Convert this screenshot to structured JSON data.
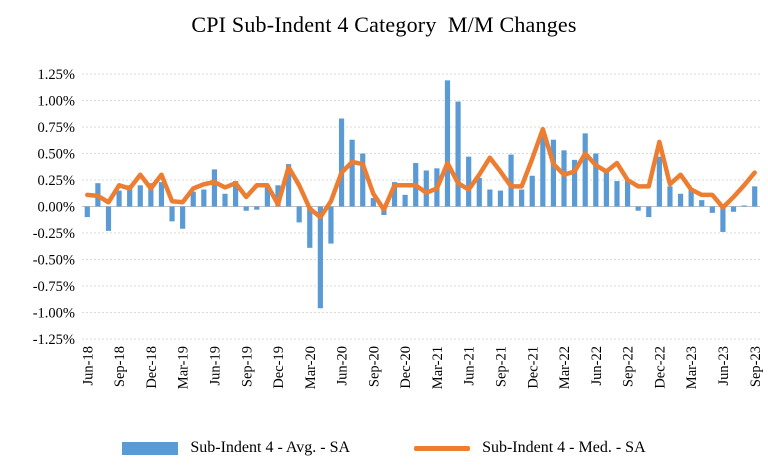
{
  "title": "CPI Sub-Indent 4 Category  M/M Changes",
  "chart_data": {
    "type": "bar",
    "subtype": "bar-and-line-combo",
    "title": "CPI Sub-Indent 4 Category  M/M Changes",
    "xlabel": "",
    "ylabel": "",
    "ylim": [
      -1.25,
      1.25
    ],
    "ytick_step": 0.25,
    "y_ticks": [
      "1.25%",
      "1.00%",
      "0.75%",
      "0.50%",
      "0.25%",
      "0.00%",
      "-0.25%",
      "-0.50%",
      "-0.75%",
      "-1.00%",
      "-1.25%"
    ],
    "x_tick_every": 3,
    "grid": true,
    "legend_position": "bottom",
    "colors": {
      "avg_bar": "#5B9BD5",
      "median_line": "#ED7D31",
      "gridline": "#D9D9D9",
      "zero_axis": "#BFBFBF",
      "text": "#000000"
    },
    "categories": [
      "Jun-18",
      "Jul-18",
      "Aug-18",
      "Sep-18",
      "Oct-18",
      "Nov-18",
      "Dec-18",
      "Jan-19",
      "Feb-19",
      "Mar-19",
      "Apr-19",
      "May-19",
      "Jun-19",
      "Jul-19",
      "Aug-19",
      "Sep-19",
      "Oct-19",
      "Nov-19",
      "Dec-19",
      "Jan-20",
      "Feb-20",
      "Mar-20",
      "Apr-20",
      "May-20",
      "Jun-20",
      "Jul-20",
      "Aug-20",
      "Sep-20",
      "Oct-20",
      "Nov-20",
      "Dec-20",
      "Jan-21",
      "Feb-21",
      "Mar-21",
      "Apr-21",
      "May-21",
      "Jun-21",
      "Jul-21",
      "Aug-21",
      "Sep-21",
      "Oct-21",
      "Nov-21",
      "Dec-21",
      "Jan-22",
      "Feb-22",
      "Mar-22",
      "Apr-22",
      "May-22",
      "Jun-22",
      "Jul-22",
      "Aug-22",
      "Sep-22",
      "Oct-22",
      "Nov-22",
      "Dec-22",
      "Jan-23",
      "Feb-23",
      "Mar-23",
      "Apr-23",
      "May-23",
      "Jun-23",
      "Jul-23",
      "Aug-23",
      "Sep-23"
    ],
    "series": [
      {
        "name": "Sub-Indent 4 - Avg. - SA",
        "kind": "bar",
        "color": "#5B9BD5",
        "unit": "%",
        "values": [
          -0.1,
          0.22,
          -0.23,
          0.15,
          0.2,
          0.2,
          0.22,
          0.23,
          -0.14,
          -0.21,
          0.14,
          0.16,
          0.35,
          0.12,
          0.24,
          -0.04,
          -0.03,
          0.2,
          0.2,
          0.4,
          -0.15,
          -0.39,
          -0.96,
          -0.35,
          0.83,
          0.63,
          0.5,
          0.08,
          -0.08,
          0.23,
          0.11,
          0.41,
          0.34,
          0.36,
          1.19,
          0.99,
          0.47,
          0.27,
          0.16,
          0.15,
          0.49,
          0.16,
          0.29,
          0.72,
          0.63,
          0.53,
          0.44,
          0.69,
          0.5,
          0.34,
          0.24,
          0.26,
          -0.04,
          -0.1,
          0.47,
          0.19,
          0.12,
          0.17,
          0.06,
          -0.06,
          -0.24,
          -0.05,
          0.01,
          0.19
        ]
      },
      {
        "name": "Sub-Indent 4 - Med. - SA",
        "kind": "line",
        "color": "#ED7D31",
        "unit": "%",
        "values": [
          0.11,
          0.1,
          0.04,
          0.2,
          0.17,
          0.3,
          0.17,
          0.3,
          0.05,
          0.04,
          0.17,
          0.21,
          0.23,
          0.18,
          0.22,
          0.09,
          0.2,
          0.2,
          0.02,
          0.37,
          0.2,
          -0.02,
          -0.1,
          0.05,
          0.32,
          0.42,
          0.4,
          0.12,
          -0.03,
          0.2,
          0.2,
          0.2,
          0.13,
          0.17,
          0.41,
          0.22,
          0.16,
          0.3,
          0.46,
          0.33,
          0.19,
          0.19,
          0.45,
          0.73,
          0.4,
          0.3,
          0.33,
          0.5,
          0.39,
          0.33,
          0.41,
          0.25,
          0.19,
          0.19,
          0.61,
          0.21,
          0.3,
          0.16,
          0.11,
          0.11,
          -0.01,
          0.09,
          0.2,
          0.32
        ]
      }
    ]
  },
  "legend": {
    "avg_label": "Sub-Indent 4 - Avg. - SA",
    "med_label": "Sub-Indent 4 - Med. - SA"
  }
}
